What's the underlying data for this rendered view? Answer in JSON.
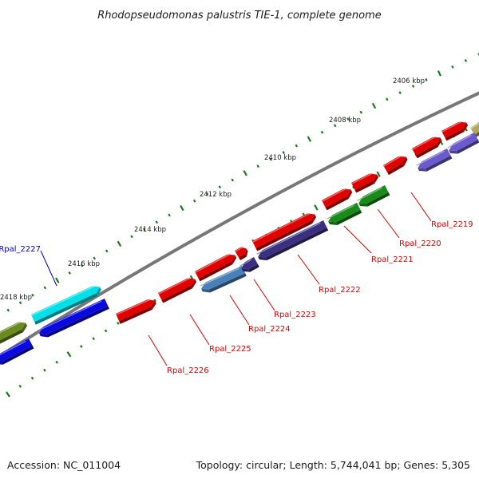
{
  "header": {
    "title": "Rhodopseudomonas palustris TIE-1, complete genome"
  },
  "footer": {
    "accession": "Accession: NC_011004",
    "summary": "Topology: circular; Length: 5,744,041 bp; Genes: 5,305"
  },
  "ruler": {
    "ticks": [
      {
        "label": "2406 kbp"
      },
      {
        "label": "2408 kbp"
      },
      {
        "label": "2410 kbp"
      },
      {
        "label": "2412 kbp"
      },
      {
        "label": "2414 kbp"
      },
      {
        "label": "2416 kbp"
      },
      {
        "label": "2418 kbp"
      }
    ]
  },
  "genes": [
    {
      "label": "Rpal_2219",
      "color": "#e00000"
    },
    {
      "label": "Rpal_2220",
      "color": "#e00000"
    },
    {
      "label": "Rpal_2221",
      "color": "#e00000"
    },
    {
      "label": "Rpal_2222",
      "color": "#e00000"
    },
    {
      "label": "Rpal_2223",
      "color": "#e00000"
    },
    {
      "label": "Rpal_2224",
      "color": "#e00000"
    },
    {
      "label": "Rpal_2225",
      "color": "#e00000"
    },
    {
      "label": "Rpal_2226",
      "color": "#e00000"
    },
    {
      "label": "Rpal_2227",
      "color": "#0000cc"
    }
  ],
  "colors": {
    "backbone": "#777777",
    "tick": "#1a7a1a",
    "red": "#e00000",
    "green": "#1a8a1a",
    "navy": "#3a2f80",
    "slate_blue": "#6a5acd",
    "steel_blue": "#4a80b8",
    "cyan": "#00e0e8",
    "blue": "#0a0ae0",
    "olive": "#6a8a20",
    "khaki": "#b0a860"
  }
}
